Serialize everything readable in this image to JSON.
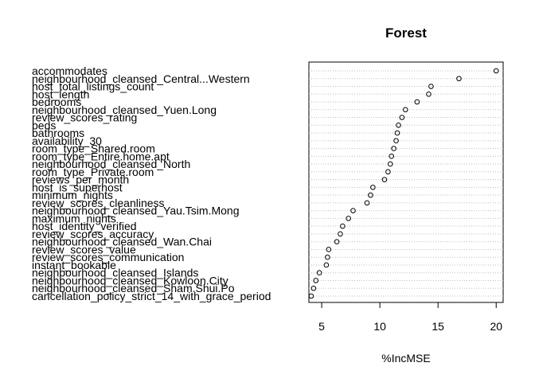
{
  "chart_data": {
    "type": "scatter",
    "title": "Forest",
    "xlabel": "%IncMSE",
    "ylabel": "",
    "xlim": [
      3.9,
      20.6
    ],
    "xticks": [
      5,
      10,
      15,
      20
    ],
    "grid": "dotted horizontal lines",
    "point_color": "#000000",
    "grid_color": "#bebebe",
    "variables": [
      {
        "name": "accommodates",
        "value": 20.0
      },
      {
        "name": "neighbourhood_cleansed_Central...Western",
        "value": 16.8
      },
      {
        "name": "host_total_listings_count",
        "value": 14.4
      },
      {
        "name": "host_length",
        "value": 14.2
      },
      {
        "name": "bedrooms",
        "value": 13.2
      },
      {
        "name": "neighbourhood_cleansed_Yuen.Long",
        "value": 12.2
      },
      {
        "name": "review_scores_rating",
        "value": 11.9
      },
      {
        "name": "beds",
        "value": 11.6
      },
      {
        "name": "bathrooms",
        "value": 11.5
      },
      {
        "name": "availability_30",
        "value": 11.4
      },
      {
        "name": "room_type_Shared.room",
        "value": 11.2
      },
      {
        "name": "room_type_Entire.home.apt",
        "value": 11.0
      },
      {
        "name": "neighbourhood_cleansed_North",
        "value": 10.9
      },
      {
        "name": "room_type_Private.room",
        "value": 10.7
      },
      {
        "name": "reviews_per_month",
        "value": 10.4
      },
      {
        "name": "host_is_superhost",
        "value": 9.4
      },
      {
        "name": "minimum_nights",
        "value": 9.2
      },
      {
        "name": "review_scores_cleanliness",
        "value": 8.9
      },
      {
        "name": "neighbourhood_cleansed_Yau.Tsim.Mong",
        "value": 7.7
      },
      {
        "name": "maximum_nights",
        "value": 7.3
      },
      {
        "name": "host_identity_verified",
        "value": 6.8
      },
      {
        "name": "review_scores_accuracy",
        "value": 6.6
      },
      {
        "name": "neighbourhood_cleansed_Wan.Chai",
        "value": 6.3
      },
      {
        "name": "review_scores_value",
        "value": 5.6
      },
      {
        "name": "review_scores_communication",
        "value": 5.5
      },
      {
        "name": "instant_bookable",
        "value": 5.4
      },
      {
        "name": "neighbourhood_cleansed_Islands",
        "value": 4.8
      },
      {
        "name": "neighbourhood_cleansed_Kowloon.City",
        "value": 4.5
      },
      {
        "name": "neighbourhood_cleansed_Sham.Shui.Po",
        "value": 4.3
      },
      {
        "name": "cancellation_policy_strict_14_with_grace_period",
        "value": 4.1
      }
    ]
  }
}
